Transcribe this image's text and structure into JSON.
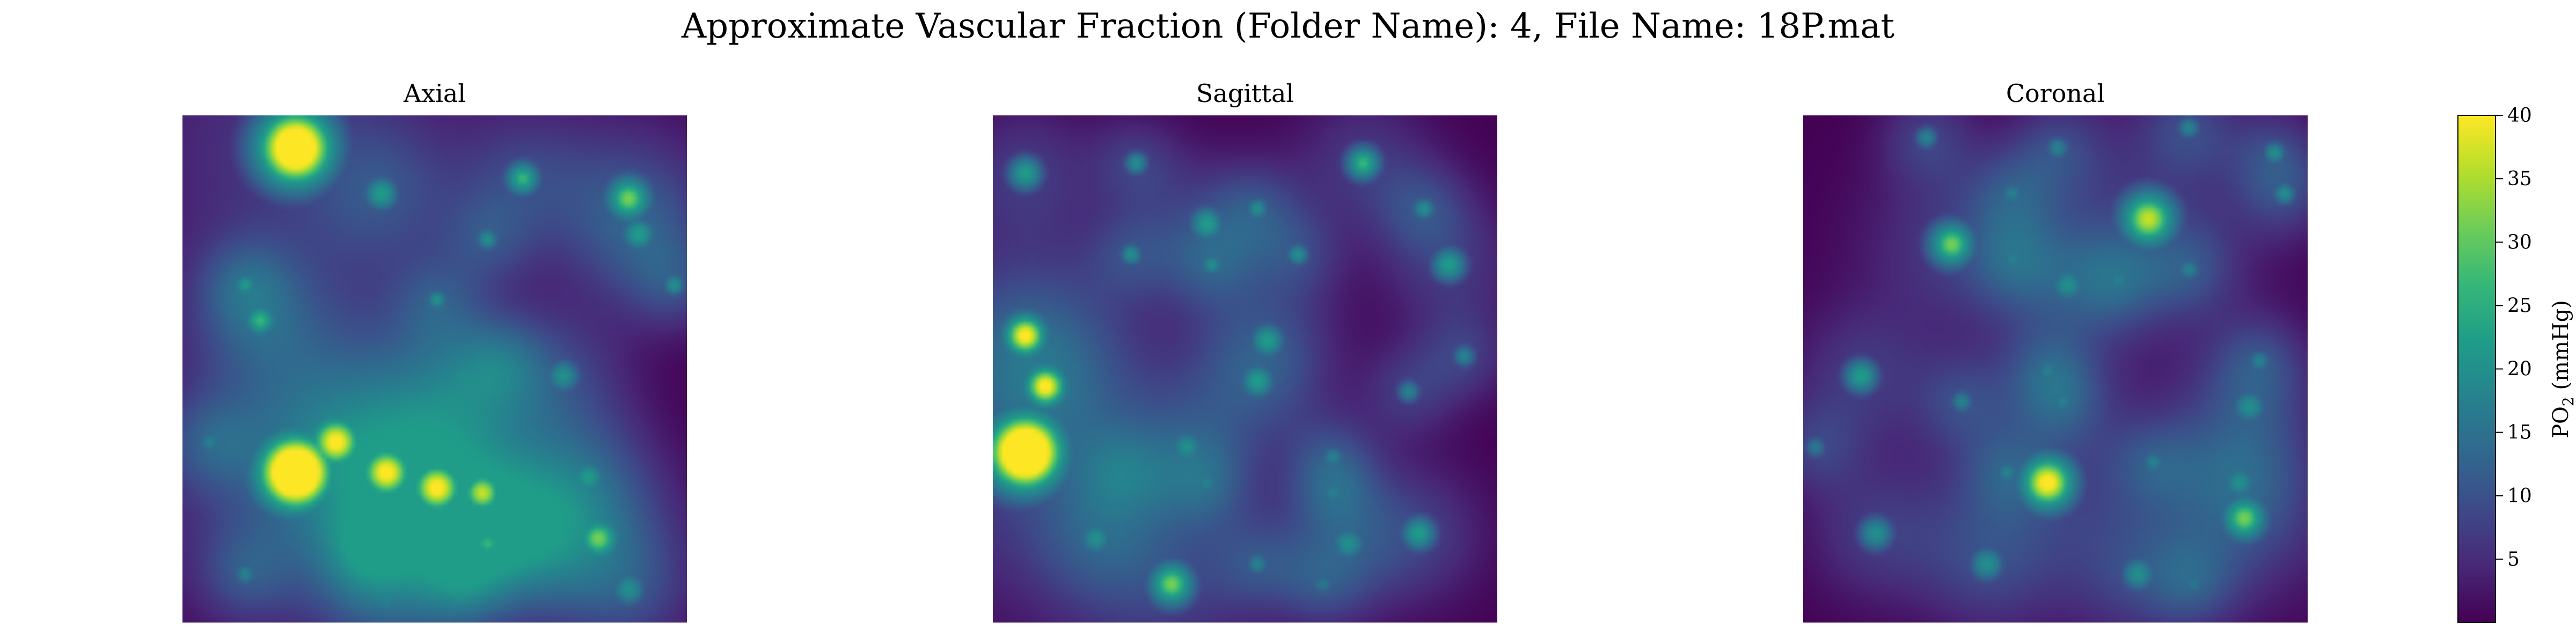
{
  "figure": {
    "suptitle": "Approximate Vascular Fraction (Folder Name): 4, File Name: 18P.mat"
  },
  "chart_data": {
    "type": "heatmap",
    "colormap": "viridis",
    "panels": [
      {
        "title": "Axial",
        "blobs": [
          [
            0.22,
            0.06,
            0.07,
            0.85
          ],
          [
            0.39,
            0.15,
            0.03,
            0.55
          ],
          [
            0.67,
            0.12,
            0.03,
            0.6
          ],
          [
            0.88,
            0.16,
            0.04,
            0.65
          ],
          [
            0.6,
            0.24,
            0.02,
            0.5
          ],
          [
            0.9,
            0.23,
            0.03,
            0.55
          ],
          [
            0.12,
            0.33,
            0.02,
            0.55
          ],
          [
            0.15,
            0.4,
            0.03,
            0.6
          ],
          [
            0.5,
            0.36,
            0.02,
            0.5
          ],
          [
            0.97,
            0.33,
            0.02,
            0.5
          ],
          [
            0.55,
            0.51,
            0.03,
            0.5
          ],
          [
            0.63,
            0.48,
            0.02,
            0.45
          ],
          [
            0.75,
            0.51,
            0.03,
            0.5
          ],
          [
            0.05,
            0.64,
            0.02,
            0.45
          ],
          [
            0.22,
            0.7,
            0.07,
            0.9
          ],
          [
            0.3,
            0.64,
            0.05,
            0.75
          ],
          [
            0.4,
            0.7,
            0.05,
            0.75
          ],
          [
            0.5,
            0.73,
            0.05,
            0.75
          ],
          [
            0.59,
            0.74,
            0.04,
            0.7
          ],
          [
            0.6,
            0.84,
            0.03,
            0.6
          ],
          [
            0.8,
            0.71,
            0.03,
            0.55
          ],
          [
            0.82,
            0.83,
            0.04,
            0.65
          ],
          [
            0.71,
            0.84,
            0.03,
            0.55
          ],
          [
            0.36,
            0.86,
            0.02,
            0.45
          ],
          [
            0.12,
            0.9,
            0.02,
            0.45
          ],
          [
            0.88,
            0.93,
            0.03,
            0.5
          ],
          [
            0.4,
            0.95,
            0.03,
            0.45
          ],
          [
            0.55,
            0.93,
            0.02,
            0.4
          ]
        ]
      },
      {
        "title": "Sagittal",
        "blobs": [
          [
            0.06,
            0.11,
            0.03,
            0.55
          ],
          [
            0.28,
            0.09,
            0.02,
            0.5
          ],
          [
            0.73,
            0.09,
            0.03,
            0.6
          ],
          [
            0.42,
            0.21,
            0.03,
            0.55
          ],
          [
            0.52,
            0.18,
            0.02,
            0.5
          ],
          [
            0.85,
            0.18,
            0.02,
            0.5
          ],
          [
            0.43,
            0.29,
            0.02,
            0.5
          ],
          [
            0.6,
            0.27,
            0.02,
            0.5
          ],
          [
            0.9,
            0.29,
            0.03,
            0.55
          ],
          [
            0.27,
            0.27,
            0.02,
            0.5
          ],
          [
            0.54,
            0.44,
            0.03,
            0.55
          ],
          [
            0.52,
            0.52,
            0.03,
            0.55
          ],
          [
            0.06,
            0.43,
            0.04,
            0.75
          ],
          [
            0.1,
            0.53,
            0.04,
            0.75
          ],
          [
            0.06,
            0.66,
            0.07,
            0.9
          ],
          [
            0.93,
            0.47,
            0.02,
            0.45
          ],
          [
            0.82,
            0.54,
            0.02,
            0.45
          ],
          [
            0.38,
            0.65,
            0.03,
            0.5
          ],
          [
            0.42,
            0.72,
            0.02,
            0.45
          ],
          [
            0.67,
            0.67,
            0.02,
            0.45
          ],
          [
            0.67,
            0.74,
            0.02,
            0.45
          ],
          [
            0.7,
            0.84,
            0.03,
            0.5
          ],
          [
            0.84,
            0.82,
            0.03,
            0.55
          ],
          [
            0.2,
            0.83,
            0.03,
            0.5
          ],
          [
            0.35,
            0.92,
            0.04,
            0.65
          ],
          [
            0.52,
            0.88,
            0.02,
            0.45
          ],
          [
            0.65,
            0.92,
            0.02,
            0.4
          ],
          [
            0.25,
            0.7,
            0.02,
            0.4
          ]
        ]
      },
      {
        "title": "Coronal",
        "blobs": [
          [
            0.24,
            0.04,
            0.02,
            0.45
          ],
          [
            0.5,
            0.06,
            0.02,
            0.45
          ],
          [
            0.76,
            0.02,
            0.02,
            0.45
          ],
          [
            0.93,
            0.07,
            0.02,
            0.5
          ],
          [
            0.41,
            0.15,
            0.02,
            0.45
          ],
          [
            0.95,
            0.15,
            0.02,
            0.5
          ],
          [
            0.29,
            0.25,
            0.04,
            0.65
          ],
          [
            0.41,
            0.28,
            0.02,
            0.45
          ],
          [
            0.68,
            0.2,
            0.05,
            0.7
          ],
          [
            0.76,
            0.3,
            0.02,
            0.45
          ],
          [
            0.52,
            0.33,
            0.03,
            0.5
          ],
          [
            0.62,
            0.32,
            0.02,
            0.45
          ],
          [
            0.11,
            0.51,
            0.03,
            0.55
          ],
          [
            0.31,
            0.56,
            0.02,
            0.45
          ],
          [
            0.48,
            0.5,
            0.02,
            0.45
          ],
          [
            0.51,
            0.56,
            0.02,
            0.45
          ],
          [
            0.88,
            0.57,
            0.03,
            0.5
          ],
          [
            0.9,
            0.48,
            0.02,
            0.45
          ],
          [
            0.48,
            0.72,
            0.05,
            0.75
          ],
          [
            0.4,
            0.7,
            0.02,
            0.45
          ],
          [
            0.69,
            0.68,
            0.02,
            0.45
          ],
          [
            0.86,
            0.72,
            0.03,
            0.5
          ],
          [
            0.87,
            0.79,
            0.04,
            0.65
          ],
          [
            0.14,
            0.82,
            0.03,
            0.5
          ],
          [
            0.36,
            0.88,
            0.03,
            0.5
          ],
          [
            0.66,
            0.9,
            0.03,
            0.5
          ],
          [
            0.77,
            0.92,
            0.02,
            0.4
          ],
          [
            0.02,
            0.65,
            0.02,
            0.4
          ]
        ]
      }
    ],
    "colorbar": {
      "label": "PO$_2$ (mmHg)",
      "label_text": "PO",
      "label_sub": "2",
      "label_rest": " (mmHg)",
      "ticks": [
        "5",
        "10",
        "15",
        "20",
        "25",
        "30",
        "35",
        "40"
      ],
      "tick_values": [
        5,
        10,
        15,
        20,
        25,
        30,
        35,
        40
      ],
      "range": [
        0,
        40
      ]
    }
  }
}
